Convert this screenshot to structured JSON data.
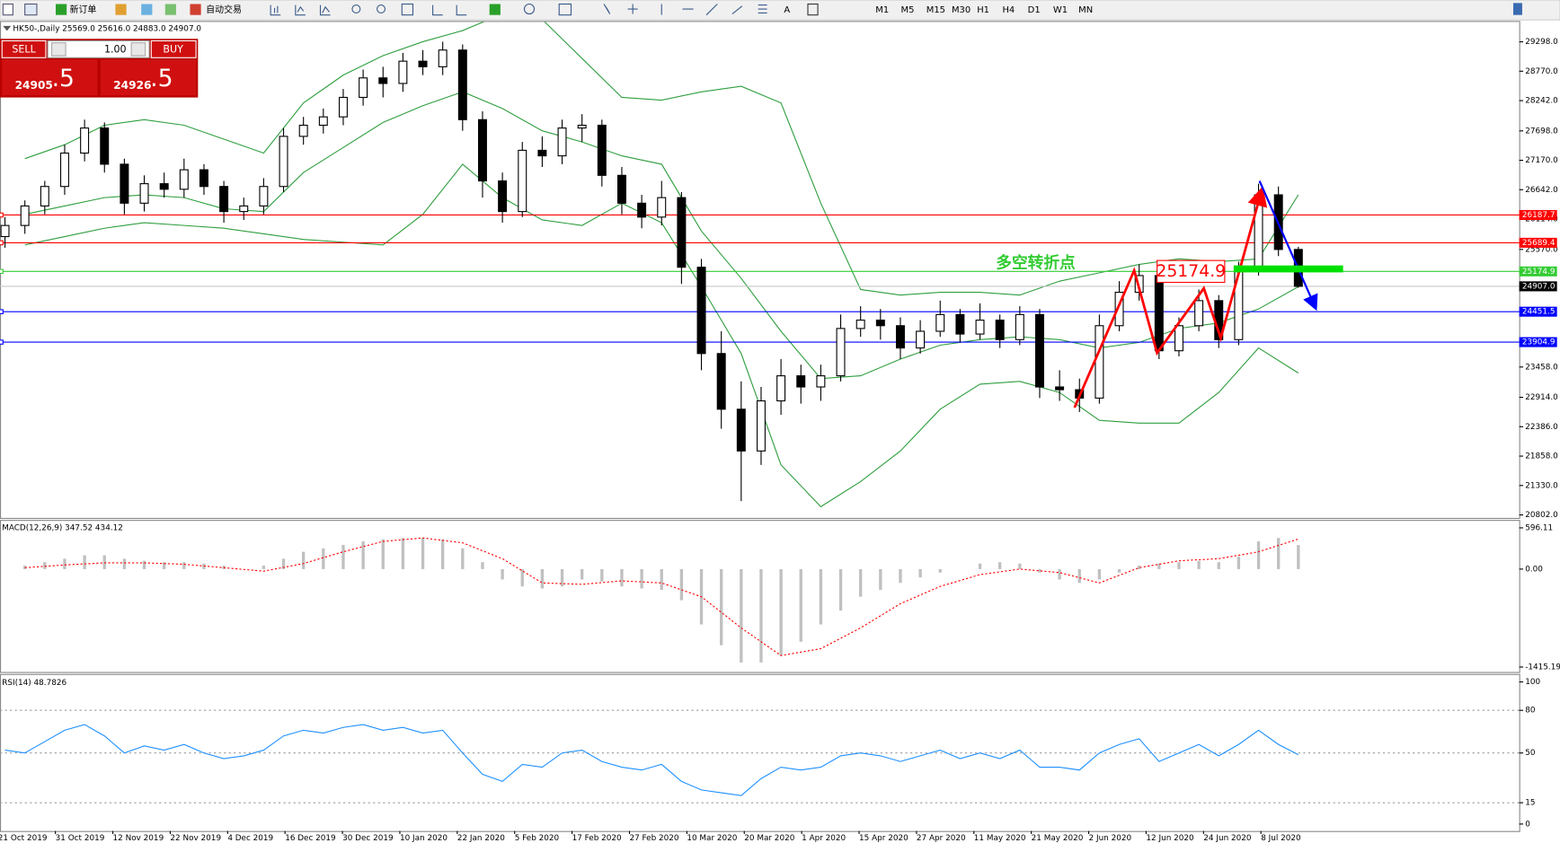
{
  "toolbar": {
    "buttons": [
      "新订单",
      "自动交易"
    ],
    "timeframes": [
      "M1",
      "M5",
      "M15",
      "M30",
      "H1",
      "H4",
      "D1",
      "W1",
      "MN"
    ]
  },
  "trade_panel": {
    "sell": "SELL",
    "lots": "1.00",
    "buy": "BUY",
    "sell_price": [
      "24905",
      ".5"
    ],
    "buy_price": [
      "24926",
      ".5"
    ]
  },
  "chart_data": [
    {
      "type": "candlestick",
      "title": "HK50-,Daily  25569.0 25616.0 24883.0 24907.0",
      "candles": [
        [
          25800,
          26150,
          25600,
          26000
        ],
        [
          26000,
          26450,
          25850,
          26350
        ],
        [
          26350,
          26800,
          26200,
          26700
        ],
        [
          26700,
          27450,
          26550,
          27300
        ],
        [
          27300,
          27900,
          27150,
          27750
        ],
        [
          27750,
          27850,
          26950,
          27100
        ],
        [
          27100,
          27200,
          26200,
          26400
        ],
        [
          26400,
          26900,
          26250,
          26750
        ],
        [
          26750,
          26950,
          26500,
          26650
        ],
        [
          26650,
          27200,
          26500,
          27000
        ],
        [
          27000,
          27100,
          26550,
          26700
        ],
        [
          26700,
          26800,
          26050,
          26250
        ],
        [
          26250,
          26500,
          26100,
          26350
        ],
        [
          26350,
          26850,
          26200,
          26700
        ],
        [
          26700,
          27750,
          26600,
          27600
        ],
        [
          27600,
          27950,
          27450,
          27800
        ],
        [
          27800,
          28100,
          27650,
          27950
        ],
        [
          27950,
          28450,
          27800,
          28300
        ],
        [
          28300,
          28800,
          28150,
          28650
        ],
        [
          28650,
          28850,
          28300,
          28550
        ],
        [
          28550,
          29100,
          28400,
          28950
        ],
        [
          28950,
          29150,
          28700,
          28850
        ],
        [
          28850,
          29300,
          28700,
          29150
        ],
        [
          29150,
          29250,
          27700,
          27900
        ],
        [
          27900,
          28050,
          26500,
          26800
        ],
        [
          26800,
          26950,
          26050,
          26250
        ],
        [
          26250,
          27500,
          26150,
          27350
        ],
        [
          27350,
          27600,
          27050,
          27250
        ],
        [
          27250,
          27900,
          27100,
          27750
        ],
        [
          27750,
          28000,
          27500,
          27800
        ],
        [
          27800,
          27900,
          26700,
          26900
        ],
        [
          26900,
          27050,
          26200,
          26400
        ],
        [
          26400,
          26550,
          25950,
          26150
        ],
        [
          26150,
          26800,
          26000,
          26500
        ],
        [
          26500,
          26600,
          24950,
          25250
        ],
        [
          25250,
          25400,
          23400,
          23700
        ],
        [
          23700,
          24100,
          22350,
          22700
        ],
        [
          22700,
          23200,
          21050,
          21950
        ],
        [
          21950,
          23100,
          21700,
          22850
        ],
        [
          22850,
          23600,
          22600,
          23300
        ],
        [
          23300,
          23500,
          22800,
          23100
        ],
        [
          23100,
          23500,
          22850,
          23300
        ],
        [
          23300,
          24400,
          23200,
          24150
        ],
        [
          24150,
          24550,
          24000,
          24300
        ],
        [
          24300,
          24500,
          23950,
          24200
        ],
        [
          24200,
          24350,
          23600,
          23800
        ],
        [
          23800,
          24300,
          23700,
          24100
        ],
        [
          24100,
          24650,
          24000,
          24400
        ],
        [
          24400,
          24500,
          23900,
          24050
        ],
        [
          24050,
          24600,
          23950,
          24300
        ],
        [
          24300,
          24400,
          23800,
          23950
        ],
        [
          23950,
          24550,
          23850,
          24400
        ],
        [
          24400,
          24500,
          22900,
          23100
        ],
        [
          23100,
          23400,
          22850,
          23050
        ],
        [
          23050,
          23250,
          22650,
          22900
        ],
        [
          22900,
          24400,
          22800,
          24200
        ],
        [
          24200,
          25000,
          24100,
          24800
        ],
        [
          24800,
          25300,
          24650,
          25100
        ],
        [
          25100,
          25200,
          23600,
          23750
        ],
        [
          23750,
          24350,
          23650,
          24200
        ],
        [
          24200,
          24850,
          24100,
          24650
        ],
        [
          24650,
          24750,
          23800,
          23950
        ],
        [
          23950,
          25350,
          23850,
          25200
        ],
        [
          25200,
          26750,
          25100,
          26550
        ],
        [
          26550,
          26700,
          25450,
          25569
        ],
        [
          25569,
          25616,
          24883,
          24907
        ]
      ],
      "bands": {
        "upper": [
          27200,
          27450,
          27800,
          27900,
          27800,
          27550,
          27300,
          28200,
          28700,
          29050,
          29300,
          29500,
          29800,
          29700,
          29000,
          28300,
          28250,
          28400,
          28500,
          28200,
          26400,
          24850,
          24750,
          24800,
          24800,
          24750,
          25000,
          25150,
          25300,
          25400,
          25350,
          25400,
          26550
        ],
        "middle": [
          26200,
          26350,
          26500,
          26550,
          26500,
          26300,
          26250,
          26950,
          27400,
          27850,
          28150,
          28400,
          28100,
          27700,
          27500,
          27250,
          27100,
          25900,
          25050,
          24100,
          23250,
          23300,
          23600,
          23850,
          23950,
          24000,
          23950,
          23800,
          23900,
          24150,
          24250,
          24500,
          24900
        ],
        "lower": [
          25650,
          25800,
          25950,
          26050,
          26000,
          25950,
          25850,
          25750,
          25700,
          25650,
          26200,
          27100,
          26500,
          26100,
          26000,
          26400,
          26050,
          24900,
          23700,
          21700,
          20950,
          21400,
          21950,
          22700,
          23150,
          23200,
          23000,
          22500,
          22450,
          22450,
          23000,
          23800,
          23350
        ]
      },
      "band_color": "#2e9e3e",
      "ylim": [
        20748,
        29655
      ],
      "yticks": [
        {
          "value": 29298,
          "label": "29298.0"
        },
        {
          "value": 28770,
          "label": "28770.0"
        },
        {
          "value": 28242,
          "label": "28242.0"
        },
        {
          "value": 27698,
          "label": "27698.0"
        },
        {
          "value": 27170,
          "label": "27170.0"
        },
        {
          "value": 26642,
          "label": "26642.0"
        },
        {
          "value": 26114,
          "label": "26114.0"
        },
        {
          "value": 25570,
          "label": "25570.0"
        },
        {
          "value": 23458,
          "label": "23458.0"
        },
        {
          "value": 22914,
          "label": "22914.0"
        },
        {
          "value": 22386,
          "label": "22386.0"
        },
        {
          "value": 21858,
          "label": "21858.0"
        },
        {
          "value": 21330,
          "label": "21330.0"
        },
        {
          "value": 20802,
          "label": "20802.0"
        }
      ],
      "hlines": [
        {
          "value": 26187.7,
          "color": "#ff0000"
        },
        {
          "value": 25689.4,
          "color": "#ff0000"
        },
        {
          "value": 25174.9,
          "color": "#33cc33"
        },
        {
          "value": 24451.5,
          "color": "#0000ff"
        },
        {
          "value": 23904.9,
          "color": "#0000ff"
        }
      ],
      "bid": {
        "value": 24907,
        "label": "24907.0"
      },
      "annotations": [
        "多空转折点"
      ],
      "x_labels": [
        "21 Oct 2019",
        "31 Oct 2019",
        "12 Nov 2019",
        "22 Nov 2019",
        "4 Dec 2019",
        "16 Dec 2019",
        "30 Dec 2019",
        "10 Jan 2020",
        "22 Jan 2020",
        "5 Feb 2020",
        "17 Feb 2020",
        "27 Feb 2020",
        "10 Mar 2020",
        "20 Mar 2020",
        "1 Apr 2020",
        "15 Apr 2020",
        "27 Apr 2020",
        "11 May 2020",
        "21 May 2020",
        "2 Jun 2020",
        "12 Jun 2020",
        "24 Jun 2020",
        "8 Jul 2020"
      ]
    },
    {
      "type": "macd",
      "title": "MACD(12,26,9) 347.52 434.12",
      "values": [
        0,
        50,
        100,
        150,
        200,
        200,
        150,
        120,
        100,
        100,
        80,
        50,
        0,
        50,
        150,
        250,
        300,
        350,
        400,
        430,
        450,
        450,
        430,
        300,
        100,
        -150,
        -250,
        -280,
        -250,
        -150,
        -180,
        -250,
        -280,
        -300,
        -450,
        -800,
        -1100,
        -1350,
        -1350,
        -1250,
        -1050,
        -800,
        -600,
        -400,
        -300,
        -200,
        -120,
        -50,
        0,
        80,
        100,
        80,
        -50,
        -150,
        -200,
        -150,
        -50,
        50,
        80,
        100,
        120,
        100,
        180,
        400,
        450,
        347.52
      ],
      "signal": [
        20,
        60,
        90,
        90,
        70,
        20,
        -30,
        80,
        250,
        400,
        450,
        380,
        150,
        -200,
        -220,
        -170,
        -200,
        -400,
        -850,
        -1250,
        -1150,
        -850,
        -500,
        -250,
        -80,
        0,
        -50,
        -200,
        20,
        120,
        150,
        250,
        434.12
      ],
      "color": "#c0c0c0",
      "signal_color": "#ff0000",
      "ylim": [
        -1487,
        711
      ],
      "yticks": [
        {
          "value": 596.11,
          "label": "596.11"
        },
        {
          "value": 0,
          "label": "0.00"
        },
        {
          "value": -1415.19,
          "label": "-1415.19"
        }
      ]
    },
    {
      "type": "line",
      "title": "RSI(14) 48.7826",
      "values": [
        52,
        50,
        58,
        66,
        70,
        62,
        50,
        55,
        52,
        56,
        50,
        46,
        48,
        52,
        62,
        66,
        64,
        68,
        70,
        66,
        68,
        64,
        66,
        50,
        35,
        30,
        42,
        40,
        50,
        52,
        44,
        40,
        38,
        42,
        30,
        24,
        22,
        20,
        32,
        40,
        38,
        40,
        48,
        50,
        48,
        44,
        48,
        52,
        46,
        50,
        46,
        52,
        40,
        40,
        38,
        50,
        56,
        60,
        44,
        50,
        56,
        48,
        56,
        66,
        56,
        48.7826
      ],
      "color": "#1e90ff",
      "ylim": [
        -4.9,
        105.6
      ],
      "yticks": [
        100,
        80,
        50,
        15,
        0
      ]
    }
  ]
}
